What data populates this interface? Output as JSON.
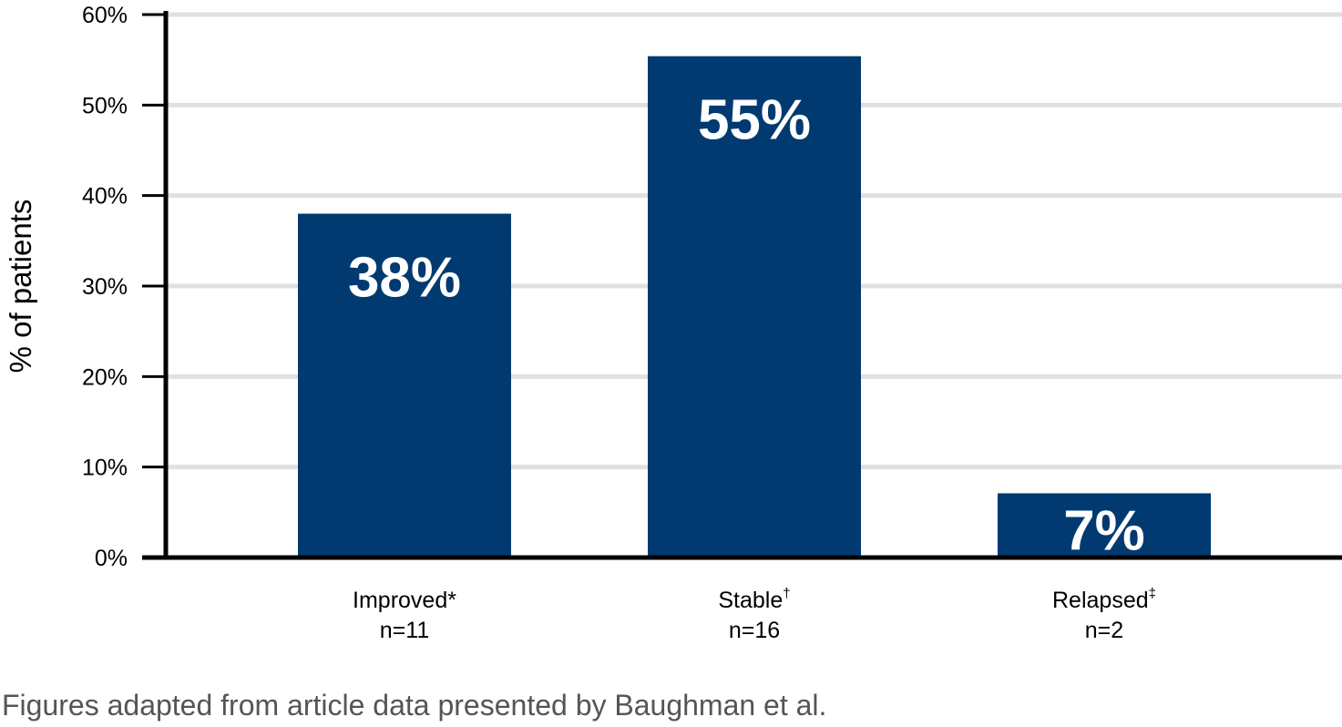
{
  "chart_data": {
    "type": "bar",
    "ylabel": "% of patients",
    "ylim": [
      0,
      60
    ],
    "yticks": [
      0,
      10,
      20,
      30,
      40,
      50,
      60
    ],
    "ytick_labels": [
      "0%",
      "10%",
      "20%",
      "30%",
      "40%",
      "50%",
      "60%"
    ],
    "grid": true,
    "categories": [
      {
        "label": "Improved",
        "mark": "*",
        "n_label": "n=11"
      },
      {
        "label": "Stable",
        "mark": "†",
        "n_label": "n=16"
      },
      {
        "label": "Relapsed",
        "mark": "‡",
        "n_label": "n=2"
      }
    ],
    "values": [
      38,
      55.4,
      7.1
    ],
    "value_labels": [
      "38%",
      "55%",
      "7%"
    ],
    "colors": {
      "bar": "#003a70",
      "bar_label": "#ffffff",
      "grid": "#e0e0e0",
      "axis": "#000000",
      "text": "#000000"
    }
  },
  "caption": "Figures adapted from article data presented by Baughman et al."
}
